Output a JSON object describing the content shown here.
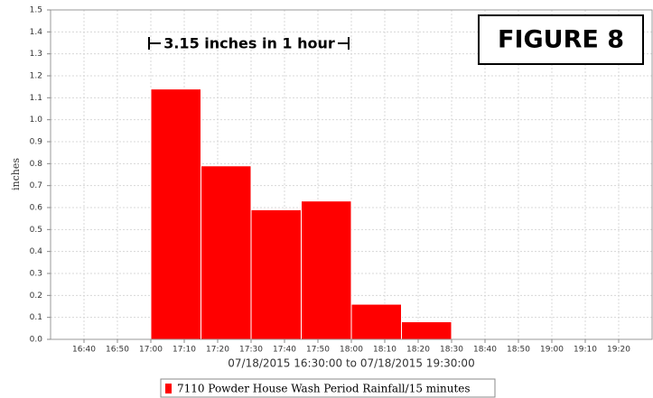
{
  "chart_data": {
    "type": "histogram",
    "annotations": [
      "3.15 inches in 1 hour",
      "FIGURE 8"
    ],
    "x_label": "07/18/2015 16:30:00 to 07/18/2015 19:30:00",
    "y_label": "inches",
    "bins": [
      1020,
      1035,
      1050,
      1065,
      1080,
      1095,
      1110
    ],
    "series": [
      {
        "name": "7110 Powder House Wash Period Rainfall/15 minutes",
        "color": "#ff0000",
        "values": [
          1.14,
          0.79,
          0.59,
          0.63,
          0.16,
          0.08
        ]
      }
    ],
    "xlim": [
      990,
      1170
    ],
    "xticks": [
      {
        "value": 1000,
        "label": "16:40"
      },
      {
        "value": 1010,
        "label": "16:50"
      },
      {
        "value": 1020,
        "label": "17:00"
      },
      {
        "value": 1030,
        "label": "17:10"
      },
      {
        "value": 1040,
        "label": "17:20"
      },
      {
        "value": 1050,
        "label": "17:30"
      },
      {
        "value": 1060,
        "label": "17:40"
      },
      {
        "value": 1070,
        "label": "17:50"
      },
      {
        "value": 1080,
        "label": "18:00"
      },
      {
        "value": 1090,
        "label": "18:10"
      },
      {
        "value": 1100,
        "label": "18:20"
      },
      {
        "value": 1110,
        "label": "18:30"
      },
      {
        "value": 1120,
        "label": "18:40"
      },
      {
        "value": 1130,
        "label": "18:50"
      },
      {
        "value": 1140,
        "label": "19:00"
      },
      {
        "value": 1150,
        "label": "19:10"
      },
      {
        "value": 1160,
        "label": "19:20"
      }
    ],
    "ylim": [
      0,
      1.5
    ],
    "yticks": [
      {
        "value": 0,
        "label": "0.0"
      },
      0.1,
      0.2,
      0.3,
      0.4,
      0.5,
      0.6,
      0.7,
      0.8,
      0.9,
      {
        "value": 1,
        "label": "1.0"
      },
      1.1,
      1.2,
      1.3,
      1.4,
      1.5
    ],
    "grid": true
  }
}
